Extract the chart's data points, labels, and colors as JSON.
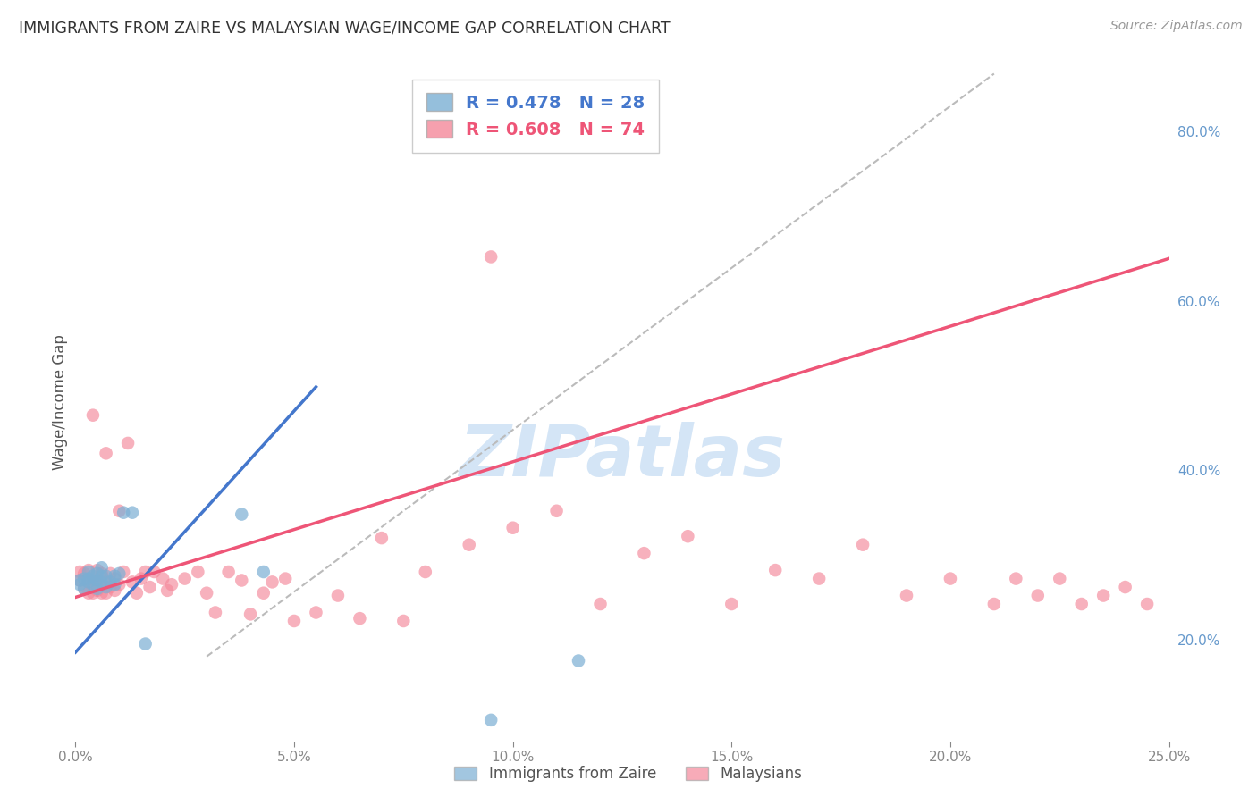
{
  "title": "IMMIGRANTS FROM ZAIRE VS MALAYSIAN WAGE/INCOME GAP CORRELATION CHART",
  "source_text": "Source: ZipAtlas.com",
  "ylabel": "Wage/Income Gap",
  "legend_label1": "Immigrants from Zaire",
  "legend_label2": "Malaysians",
  "R1": 0.478,
  "N1": 28,
  "R2": 0.608,
  "N2": 74,
  "xlim": [
    0.0,
    0.25
  ],
  "ylim": [
    0.08,
    0.88
  ],
  "xtick_vals": [
    0.0,
    0.05,
    0.1,
    0.15,
    0.2,
    0.25
  ],
  "xtick_labels": [
    "0.0%",
    "5.0%",
    "10.0%",
    "15.0%",
    "20.0%",
    "25.0%"
  ],
  "ytick_vals_right": [
    0.2,
    0.4,
    0.6,
    0.8
  ],
  "ytick_labels_right": [
    "20.0%",
    "40.0%",
    "60.0%",
    "80.0%"
  ],
  "color_blue": "#7BAFD4",
  "color_pink": "#F4889A",
  "color_blue_line": "#4477CC",
  "color_pink_line": "#EE5577",
  "color_dashed": "#BBBBBB",
  "watermark": "ZIPatlas",
  "watermark_color": "#AACCEE",
  "bg_color": "#FFFFFF",
  "grid_color": "#DDDDDD",
  "blue_x": [
    0.001,
    0.001,
    0.002,
    0.002,
    0.003,
    0.003,
    0.003,
    0.004,
    0.004,
    0.005,
    0.005,
    0.005,
    0.006,
    0.006,
    0.006,
    0.007,
    0.007,
    0.008,
    0.009,
    0.009,
    0.01,
    0.011,
    0.013,
    0.016,
    0.038,
    0.043,
    0.095,
    0.115
  ],
  "blue_y": [
    0.265,
    0.27,
    0.272,
    0.26,
    0.268,
    0.272,
    0.28,
    0.265,
    0.275,
    0.26,
    0.27,
    0.278,
    0.268,
    0.275,
    0.285,
    0.262,
    0.275,
    0.268,
    0.265,
    0.275,
    0.278,
    0.35,
    0.35,
    0.195,
    0.348,
    0.28,
    0.105,
    0.175
  ],
  "pink_x": [
    0.001,
    0.001,
    0.002,
    0.002,
    0.003,
    0.003,
    0.003,
    0.004,
    0.004,
    0.004,
    0.005,
    0.005,
    0.005,
    0.006,
    0.006,
    0.006,
    0.007,
    0.007,
    0.007,
    0.008,
    0.008,
    0.009,
    0.009,
    0.01,
    0.01,
    0.011,
    0.012,
    0.013,
    0.014,
    0.015,
    0.016,
    0.017,
    0.018,
    0.02,
    0.021,
    0.022,
    0.025,
    0.028,
    0.03,
    0.032,
    0.035,
    0.038,
    0.04,
    0.043,
    0.045,
    0.048,
    0.05,
    0.055,
    0.06,
    0.065,
    0.07,
    0.075,
    0.08,
    0.09,
    0.095,
    0.1,
    0.11,
    0.12,
    0.13,
    0.14,
    0.15,
    0.16,
    0.17,
    0.18,
    0.19,
    0.2,
    0.21,
    0.215,
    0.22,
    0.225,
    0.23,
    0.235,
    0.24,
    0.245
  ],
  "pink_y": [
    0.27,
    0.28,
    0.26,
    0.278,
    0.255,
    0.268,
    0.282,
    0.255,
    0.27,
    0.465,
    0.258,
    0.27,
    0.282,
    0.255,
    0.265,
    0.278,
    0.255,
    0.268,
    0.42,
    0.262,
    0.278,
    0.258,
    0.272,
    0.265,
    0.352,
    0.28,
    0.432,
    0.268,
    0.255,
    0.272,
    0.28,
    0.262,
    0.28,
    0.272,
    0.258,
    0.265,
    0.272,
    0.28,
    0.255,
    0.232,
    0.28,
    0.27,
    0.23,
    0.255,
    0.268,
    0.272,
    0.222,
    0.232,
    0.252,
    0.225,
    0.32,
    0.222,
    0.28,
    0.312,
    0.652,
    0.332,
    0.352,
    0.242,
    0.302,
    0.322,
    0.242,
    0.282,
    0.272,
    0.312,
    0.252,
    0.272,
    0.242,
    0.272,
    0.252,
    0.272,
    0.242,
    0.252,
    0.262,
    0.242
  ]
}
